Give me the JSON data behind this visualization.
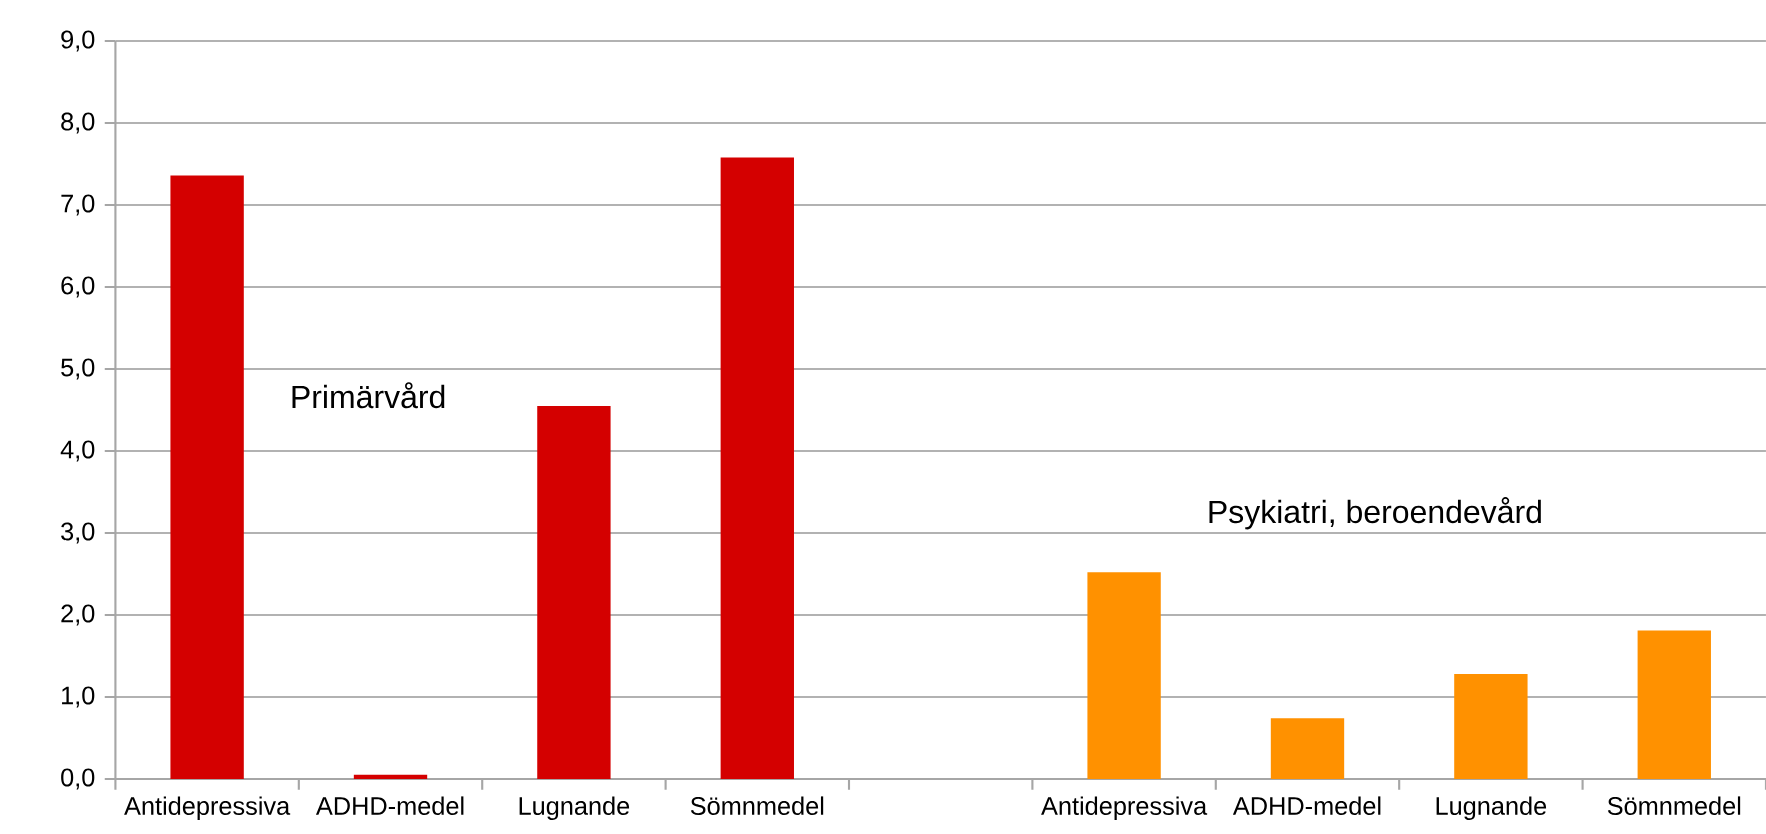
{
  "chart_data": {
    "type": "bar",
    "categories": [
      "Antidepressiva",
      "ADHD-medel",
      "Lugnande",
      "Sömnmedel",
      null,
      "Antidepressiva",
      "ADHD-medel",
      "Lugnande",
      "Sömnmedel"
    ],
    "series": [
      {
        "name": "Primärvård",
        "color": "#d40000",
        "values": [
          7.36,
          0.05,
          4.55,
          7.58,
          null,
          null,
          null,
          null,
          null
        ]
      },
      {
        "name": "Psykiatri, beroendevård",
        "color": "#ff9100",
        "values": [
          null,
          null,
          null,
          null,
          null,
          2.52,
          0.74,
          1.28,
          1.81
        ]
      }
    ],
    "ylim": [
      0,
      9
    ],
    "yticks": [
      {
        "value": 0,
        "label": "0,0"
      },
      {
        "value": 1,
        "label": "1,0"
      },
      {
        "value": 2,
        "label": "2,0"
      },
      {
        "value": 3,
        "label": "3,0"
      },
      {
        "value": 4,
        "label": "4,0"
      },
      {
        "value": 5,
        "label": "5,0"
      },
      {
        "value": 6,
        "label": "6,0"
      },
      {
        "value": 7,
        "label": "7,0"
      },
      {
        "value": 8,
        "label": "8,0"
      },
      {
        "value": 9,
        "label": "9,0"
      }
    ],
    "grid": "y"
  }
}
